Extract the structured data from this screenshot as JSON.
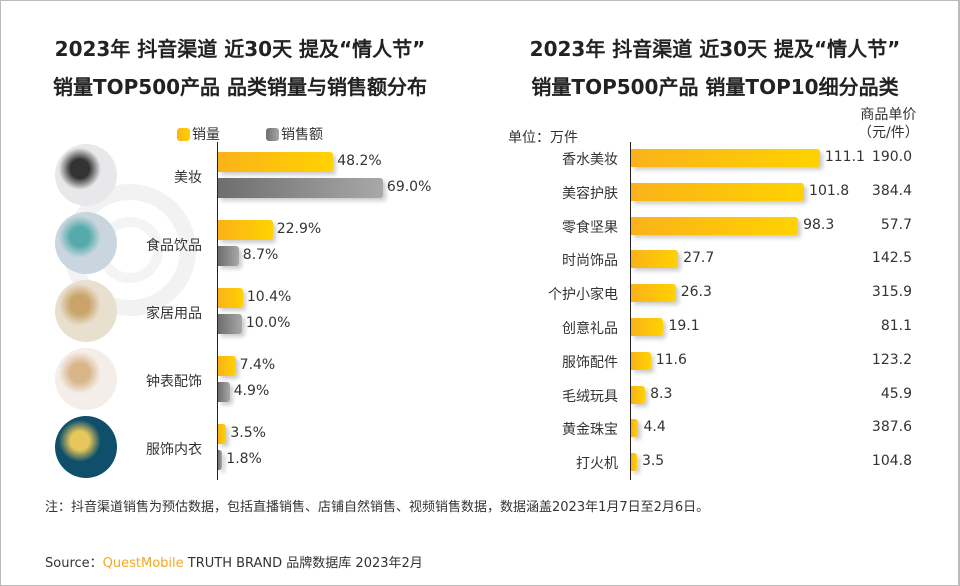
{
  "watermark": "QUESTMOBILE",
  "chart_data": [
    {
      "type": "bar",
      "orientation": "horizontal",
      "title": "2023年 抖音渠道 近30天 提及“情人节” 销量TOP500产品 品类销量与销售额分布",
      "title_lines": [
        "2023年 抖音渠道 近30天 提及“情人节”",
        "销量TOP500产品 品类销量与销售额分布"
      ],
      "categories": [
        "美妆",
        "食品饮品",
        "家居用品",
        "钟表配饰",
        "服饰内衣"
      ],
      "series": [
        {
          "name": "销量",
          "color": "#FFC107",
          "values": [
            48.2,
            22.9,
            10.4,
            7.4,
            3.5
          ],
          "labels": [
            "48.2%",
            "22.9%",
            "10.4%",
            "7.4%",
            "3.5%"
          ]
        },
        {
          "name": "销售额",
          "color": "#888888",
          "values": [
            69.0,
            8.7,
            10.0,
            4.9,
            1.8
          ],
          "labels": [
            "69.0%",
            "8.7%",
            "10.0%",
            "4.9%",
            "1.8%"
          ]
        }
      ],
      "legend": "top",
      "grid": false
    },
    {
      "type": "bar",
      "orientation": "horizontal",
      "title": "2023年 抖音渠道 近30天 提及“情人节” 销量TOP500产品 销量TOP10细分品类",
      "title_lines": [
        "2023年 抖音渠道 近30天 提及“情人节”",
        "销量TOP500产品 销量TOP10细分品类"
      ],
      "unit_label": "单位：万件",
      "categories": [
        "香水美妆",
        "美容护肤",
        "零食坚果",
        "时尚饰品",
        "个护小家电",
        "创意礼品",
        "服饰配件",
        "毛绒玩具",
        "黄金珠宝",
        "打火机"
      ],
      "values": [
        111.1,
        101.8,
        98.3,
        27.7,
        26.3,
        19.1,
        11.6,
        8.3,
        4.4,
        3.5
      ],
      "labels": [
        "111.1",
        "101.8",
        "98.3",
        "27.7",
        "26.3",
        "19.1",
        "11.6",
        "8.3",
        "4.4",
        "3.5"
      ],
      "price_header": [
        "商品单价",
        "（元/件）"
      ],
      "prices": [
        "190.0",
        "384.4",
        "57.7",
        "142.5",
        "315.9",
        "81.1",
        "123.2",
        "45.9",
        "387.6",
        "104.8"
      ],
      "color": "#FFC107",
      "grid": false
    }
  ],
  "note": "注：抖音渠道销售为预估数据，包括直播销售、店铺自然销售、视频销售数据，数据涵盖2023年1月7日至2月6日。",
  "source": {
    "prefix": "Source：",
    "brand": "QuestMobile",
    "rest": "TRUTH BRAND 品牌数据库 2023年2月",
    "brand_color": "#F5A623"
  }
}
